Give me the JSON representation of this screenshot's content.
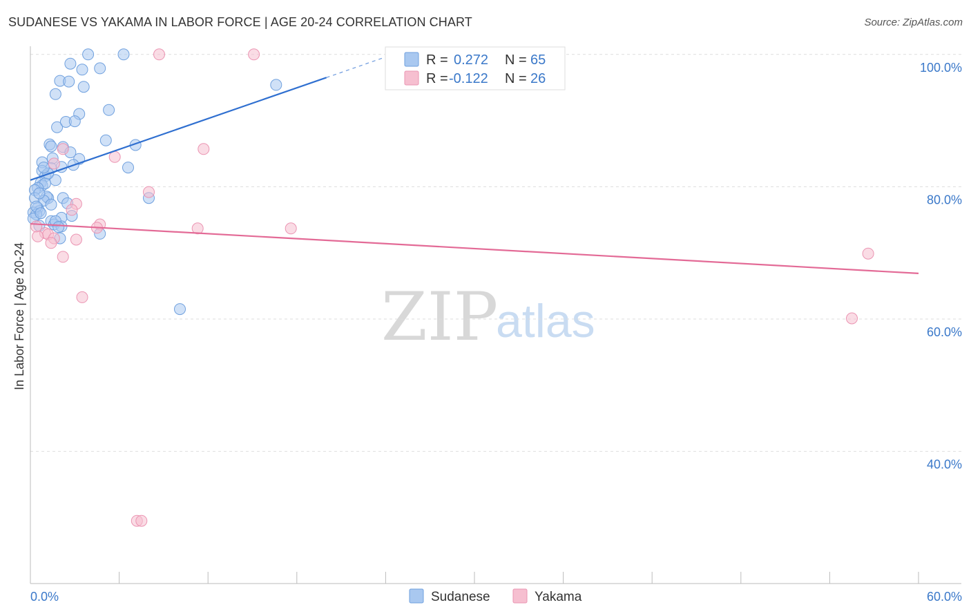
{
  "header": {
    "title": "SUDANESE VS YAKAMA IN LABOR FORCE | AGE 20-24 CORRELATION CHART",
    "source": "Source: ZipAtlas.com"
  },
  "watermark": {
    "zip": "ZIP",
    "atlas": "atlas"
  },
  "colors": {
    "blue_fill": "#a9c8f0",
    "blue_stroke": "#6fa0de",
    "blue_line": "#2f6fd0",
    "pink_fill": "#f6bfd0",
    "pink_stroke": "#eb94b2",
    "pink_line": "#e36a96",
    "accent_text": "#3a78c9",
    "grid": "#dddddd"
  },
  "chart_data": {
    "type": "scatter",
    "title": "SUDANESE VS YAKAMA IN LABOR FORCE | AGE 20-24 CORRELATION CHART",
    "xlabel": "",
    "ylabel": "In Labor Force | Age 20-24",
    "xlim": [
      0,
      60
    ],
    "ylim": [
      20,
      103
    ],
    "x_tick_labels": [
      {
        "value": 0,
        "label": "0.0%"
      },
      {
        "value": 60,
        "label": "60.0%"
      }
    ],
    "y_tick_labels": [
      {
        "value": 100,
        "label": "100.0%"
      },
      {
        "value": 80,
        "label": "80.0%"
      },
      {
        "value": 60,
        "label": "60.0%"
      },
      {
        "value": 40,
        "label": "40.0%"
      }
    ],
    "legend": [
      {
        "name": "Sudanese",
        "r_label": "R =",
        "r_value": "0.272",
        "n_label": "N =",
        "n_value": "65"
      },
      {
        "name": "Yakama",
        "r_label": "R =",
        "r_value": "-0.122",
        "n_label": "N =",
        "n_value": "26"
      }
    ],
    "series": [
      {
        "name": "Sudanese",
        "trend": {
          "x0": 0,
          "y0": 81.0,
          "x1": 20,
          "y1": 96.5,
          "dash_to_x": 24.5,
          "dash_to_y": 100.0
        },
        "points": [
          [
            3.9,
            100.0
          ],
          [
            6.3,
            100.0
          ],
          [
            2.7,
            98.6
          ],
          [
            3.5,
            97.7
          ],
          [
            4.7,
            97.9
          ],
          [
            2.0,
            96.0
          ],
          [
            2.6,
            95.9
          ],
          [
            1.7,
            94.0
          ],
          [
            3.6,
            95.1
          ],
          [
            5.3,
            91.6
          ],
          [
            1.8,
            89.0
          ],
          [
            3.3,
            91.0
          ],
          [
            2.4,
            89.8
          ],
          [
            3.0,
            89.9
          ],
          [
            5.1,
            87.0
          ],
          [
            7.1,
            86.3
          ],
          [
            1.3,
            86.4
          ],
          [
            1.4,
            86.1
          ],
          [
            2.2,
            86.0
          ],
          [
            2.7,
            85.2
          ],
          [
            1.5,
            84.3
          ],
          [
            3.3,
            84.2
          ],
          [
            2.9,
            83.3
          ],
          [
            0.8,
            83.7
          ],
          [
            2.1,
            83.0
          ],
          [
            1.4,
            82.8
          ],
          [
            0.8,
            82.4
          ],
          [
            6.6,
            82.9
          ],
          [
            1.0,
            81.6
          ],
          [
            1.7,
            81.0
          ],
          [
            0.7,
            80.6
          ],
          [
            0.8,
            80.2
          ],
          [
            1.0,
            80.5
          ],
          [
            0.5,
            79.8
          ],
          [
            0.3,
            79.5
          ],
          [
            1.2,
            78.3
          ],
          [
            2.2,
            78.3
          ],
          [
            0.3,
            78.3
          ],
          [
            1.1,
            78.5
          ],
          [
            0.9,
            77.9
          ],
          [
            2.5,
            77.5
          ],
          [
            1.4,
            77.3
          ],
          [
            0.5,
            76.8
          ],
          [
            0.6,
            76.3
          ],
          [
            0.2,
            76.1
          ],
          [
            0.4,
            75.8
          ],
          [
            2.1,
            75.3
          ],
          [
            2.8,
            75.6
          ],
          [
            0.2,
            75.2
          ],
          [
            1.4,
            74.8
          ],
          [
            1.6,
            74.3
          ],
          [
            0.6,
            74.1
          ],
          [
            2.1,
            74.0
          ],
          [
            2.0,
            72.2
          ],
          [
            4.7,
            72.9
          ],
          [
            8.0,
            78.3
          ],
          [
            16.6,
            95.4
          ],
          [
            10.1,
            61.5
          ],
          [
            1.7,
            74.8
          ],
          [
            1.2,
            82.0
          ],
          [
            0.4,
            77.0
          ],
          [
            0.9,
            82.9
          ],
          [
            0.6,
            79.0
          ],
          [
            1.9,
            73.9
          ],
          [
            0.7,
            76.0
          ]
        ]
      },
      {
        "name": "Yakama",
        "trend": {
          "x0": 0,
          "y0": 74.4,
          "x1": 60,
          "y1": 66.9
        },
        "points": [
          [
            8.7,
            100.0
          ],
          [
            15.1,
            100.0
          ],
          [
            11.7,
            85.7
          ],
          [
            2.2,
            85.7
          ],
          [
            5.7,
            84.5
          ],
          [
            1.6,
            83.5
          ],
          [
            8.0,
            79.2
          ],
          [
            3.1,
            77.4
          ],
          [
            2.8,
            76.5
          ],
          [
            4.7,
            74.3
          ],
          [
            4.5,
            73.8
          ],
          [
            11.3,
            73.7
          ],
          [
            17.6,
            73.7
          ],
          [
            1.0,
            73.0
          ],
          [
            1.2,
            72.8
          ],
          [
            1.6,
            72.2
          ],
          [
            3.1,
            72.0
          ],
          [
            0.5,
            72.5
          ],
          [
            1.4,
            71.5
          ],
          [
            2.2,
            69.4
          ],
          [
            56.6,
            69.9
          ],
          [
            3.5,
            63.3
          ],
          [
            55.5,
            60.1
          ],
          [
            7.2,
            29.5
          ],
          [
            7.5,
            29.5
          ],
          [
            0.4,
            74.0
          ]
        ]
      }
    ]
  }
}
